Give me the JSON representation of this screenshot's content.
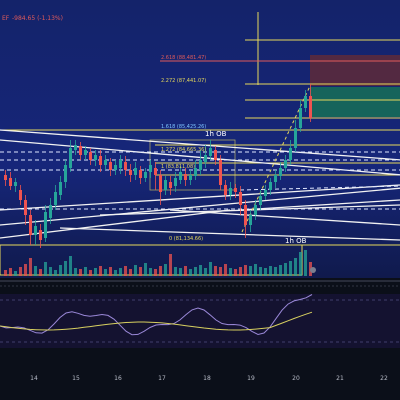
{
  "header": {
    "price_change": "-984.65 (-1.13%)",
    "symbol_fragment": "EF"
  },
  "fib_labels": [
    {
      "id": "fib-2618",
      "text": "2.618 (88,481.47)"
    },
    {
      "id": "fib-2272",
      "text": "2.272 (87,441.07)"
    },
    {
      "id": "fib-1618",
      "text": "1.618 (85,425.26)"
    },
    {
      "id": "fib-1272",
      "text": "1.272 (84,665.36)"
    },
    {
      "id": "fib-1",
      "text": "1 (83,811.08)"
    },
    {
      "id": "fib-0",
      "text": "0 (81,134.66)"
    }
  ],
  "ob_labels": {
    "ob_top": "1h OB",
    "ob_bottom": "1h OB"
  },
  "x_axis": {
    "ticks": [
      "14",
      "15",
      "16",
      "17",
      "18",
      "19",
      "20",
      "21",
      "22"
    ]
  },
  "colors": {
    "bull": "#26a69a",
    "bear": "#ef5350",
    "fib": "#e6d85c",
    "fib_red": "#e05a5a",
    "zone_green": "#1f6b5a",
    "zone_red": "#7a2a3a",
    "rsi": "#9a88d8",
    "rsi_ma": "#d8d060",
    "bg_top": "#13215e",
    "bg_bottom": "#0b0f19"
  }
}
